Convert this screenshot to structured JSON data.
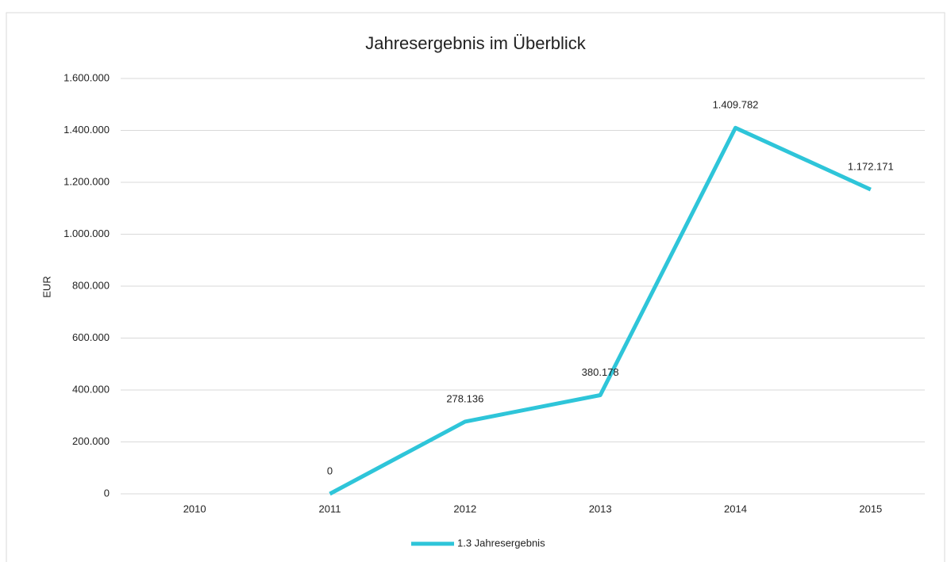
{
  "chart_data": {
    "type": "line",
    "title": "Jahresergebnis im Überblick",
    "y_label": "EUR",
    "categories": [
      "2010",
      "2011",
      "2012",
      "2013",
      "2014",
      "2015"
    ],
    "series": [
      {
        "name": "1.3 Jahresergebnis",
        "color": "#2ec5d9",
        "values": [
          null,
          0,
          278136,
          380178,
          1409782,
          1172171
        ],
        "value_labels": [
          null,
          "0",
          "278.136",
          "380.178",
          "1.409.782",
          "1.172.171"
        ]
      }
    ],
    "ylim": [
      0,
      1600000
    ],
    "yticks": [
      0,
      {
        "value": 200000,
        "label": "200.000"
      },
      {
        "value": 400000,
        "label": "400.000"
      },
      {
        "value": 600000,
        "label": "600.000"
      },
      {
        "value": 800000,
        "label": "800.000"
      },
      {
        "value": 1000000,
        "label": "1.000.000"
      },
      {
        "value": 1200000,
        "label": "1.200.000"
      },
      {
        "value": 1400000,
        "label": "1.400.000"
      },
      {
        "value": 1600000,
        "label": "1.600.000"
      }
    ],
    "grid": true,
    "legend": "bottom"
  }
}
